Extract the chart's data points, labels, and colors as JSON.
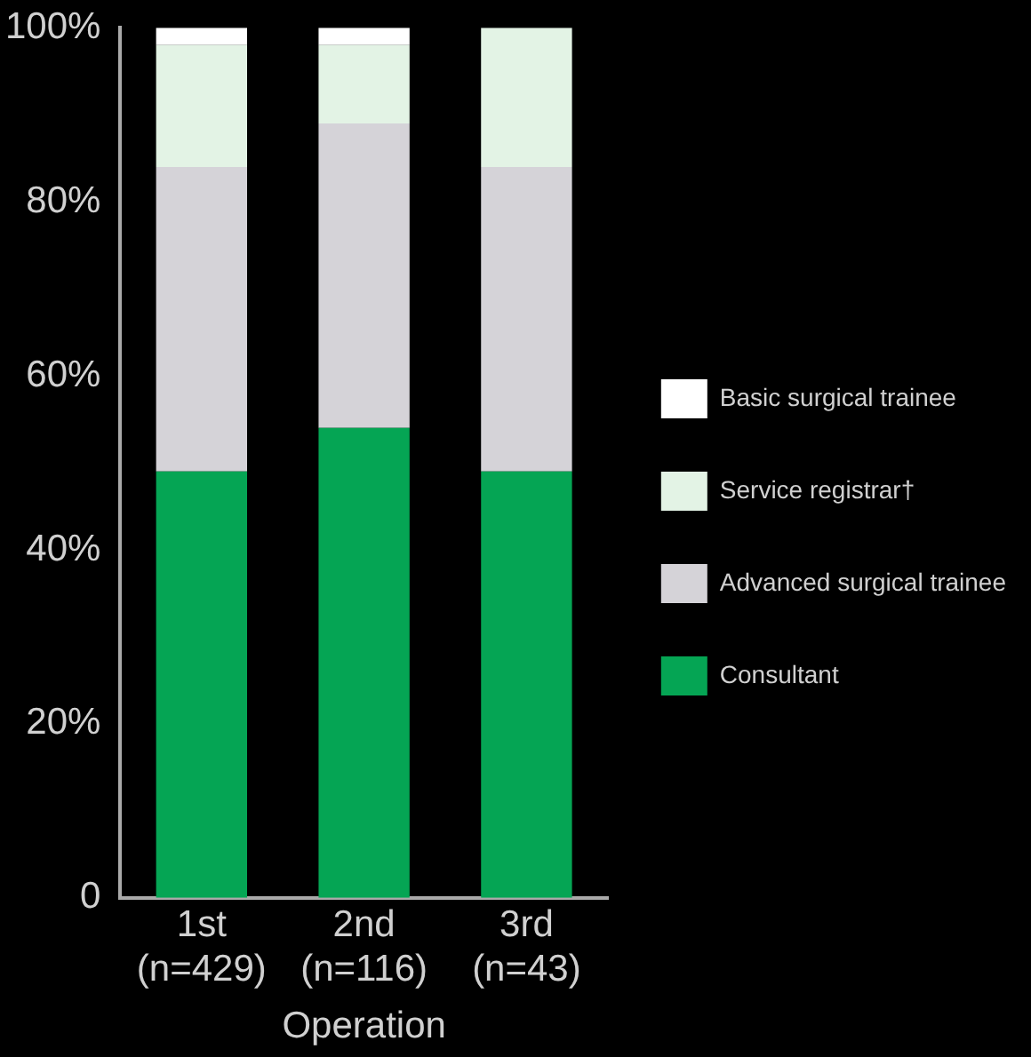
{
  "chart_data": {
    "type": "bar",
    "stacked": true,
    "xlabel": "Operation",
    "categories": [
      "1st\n(n=429)",
      "2nd\n(n=116)",
      "3rd\n(n=43)"
    ],
    "series": [
      {
        "name": "Consultant",
        "color": "#05a554",
        "values": [
          49,
          54,
          49
        ]
      },
      {
        "name": "Advanced surgical trainee",
        "color": "#d5d3d8",
        "values": [
          35,
          35,
          35
        ]
      },
      {
        "name": "Service registrar†",
        "color": "#e3f3e5",
        "values": [
          14,
          9,
          16
        ]
      },
      {
        "name": "Basic surgical trainee",
        "color": "#ffffff",
        "values": [
          2,
          2,
          0
        ]
      }
    ],
    "ylim": [
      0,
      100
    ],
    "yticks": [
      {
        "value": 0,
        "label": "0"
      },
      {
        "value": 20,
        "label": "20%"
      },
      {
        "value": 40,
        "label": "40%"
      },
      {
        "value": 60,
        "label": "60%"
      },
      {
        "value": 80,
        "label": "80%"
      },
      {
        "value": 100,
        "label": "100%"
      }
    ],
    "grid": false,
    "legend": "right"
  }
}
